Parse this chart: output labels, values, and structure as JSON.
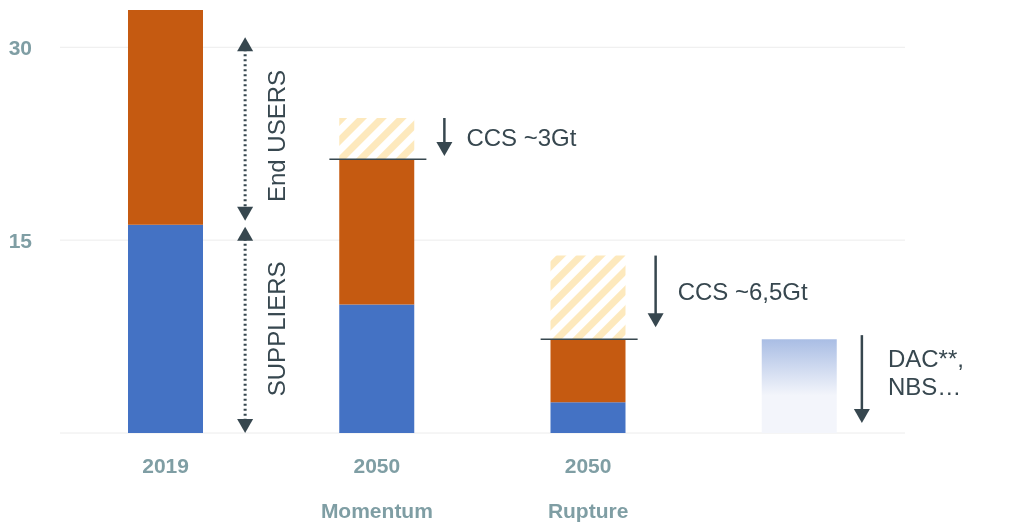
{
  "chart_data": {
    "type": "bar",
    "stacked": true,
    "categories": [
      "2019",
      "2050\nMomentum",
      "2050\nRupture",
      null
    ],
    "series": [
      {
        "color": "#4472c4",
        "values": [
          16.2,
          10.0,
          2.4,
          null
        ]
      },
      {
        "color": "#c55a11",
        "values": [
          16.7,
          11.3,
          4.9,
          null
        ]
      },
      {
        "color": "#fde9bd",
        "values": [
          null,
          3.2,
          6.5,
          null
        ]
      },
      {
        "color": "#a9bde4",
        "values": [
          null,
          null,
          null,
          7.3
        ]
      }
    ],
    "ylim": [
      0,
      33.6
    ],
    "yticks": [
      {
        "value": 0,
        "label": null
      },
      15,
      30
    ],
    "grid": "y",
    "legend": false,
    "annotations": [
      "End USERS",
      "SUPPLIERS",
      "CCS ~3Gt",
      "CCS ~6,5Gt",
      "DAC**,\nNBS…"
    ]
  }
}
